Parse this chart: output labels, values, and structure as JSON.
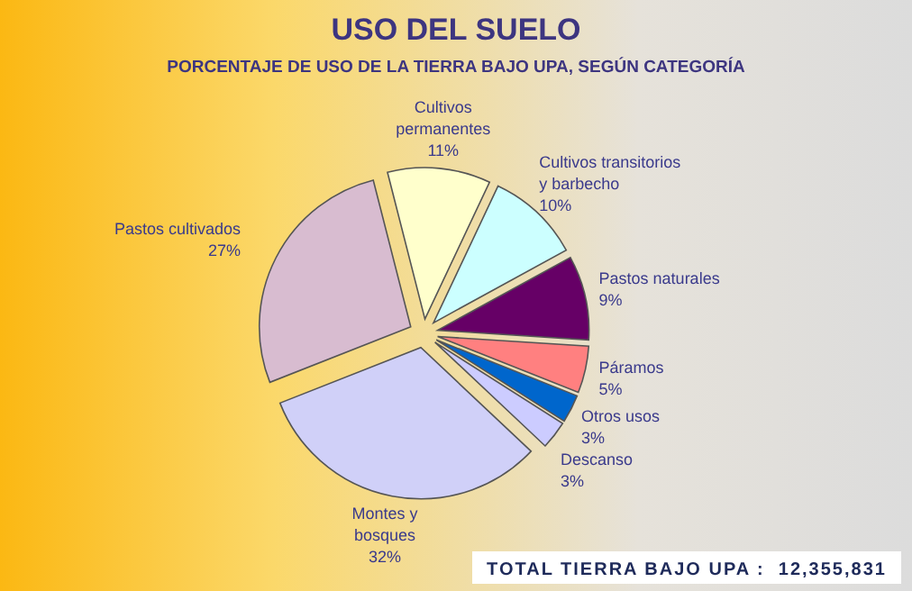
{
  "chart_data": {
    "type": "pie",
    "title": "USO DEL SUELO",
    "subtitle": "PORCENTAJE DE USO DE LA TIERRA BAJO UPA, SEGÚN CATEGORÍA",
    "categories": [
      "Cultivos permanentes",
      "Cultivos transitorios y barbecho",
      "Pastos naturales",
      "Páramos",
      "Otros usos",
      "Descanso",
      "Montes y bosques",
      "Pastos cultivados"
    ],
    "values": [
      11,
      10,
      9,
      5,
      3,
      3,
      32,
      27
    ],
    "value_labels": [
      "11%",
      "10%",
      "9%",
      "5%",
      "3%",
      "3%",
      "32%",
      "27%"
    ],
    "colors": [
      "#ffffcc",
      "#ccffff",
      "#660066",
      "#ff8080",
      "#0066cc",
      "#ccccff",
      "#d0d0f8",
      "#d8bcd0"
    ],
    "annotations": [
      "TOTAL TIERRA BAJO UPA :  12,355,831"
    ]
  }
}
